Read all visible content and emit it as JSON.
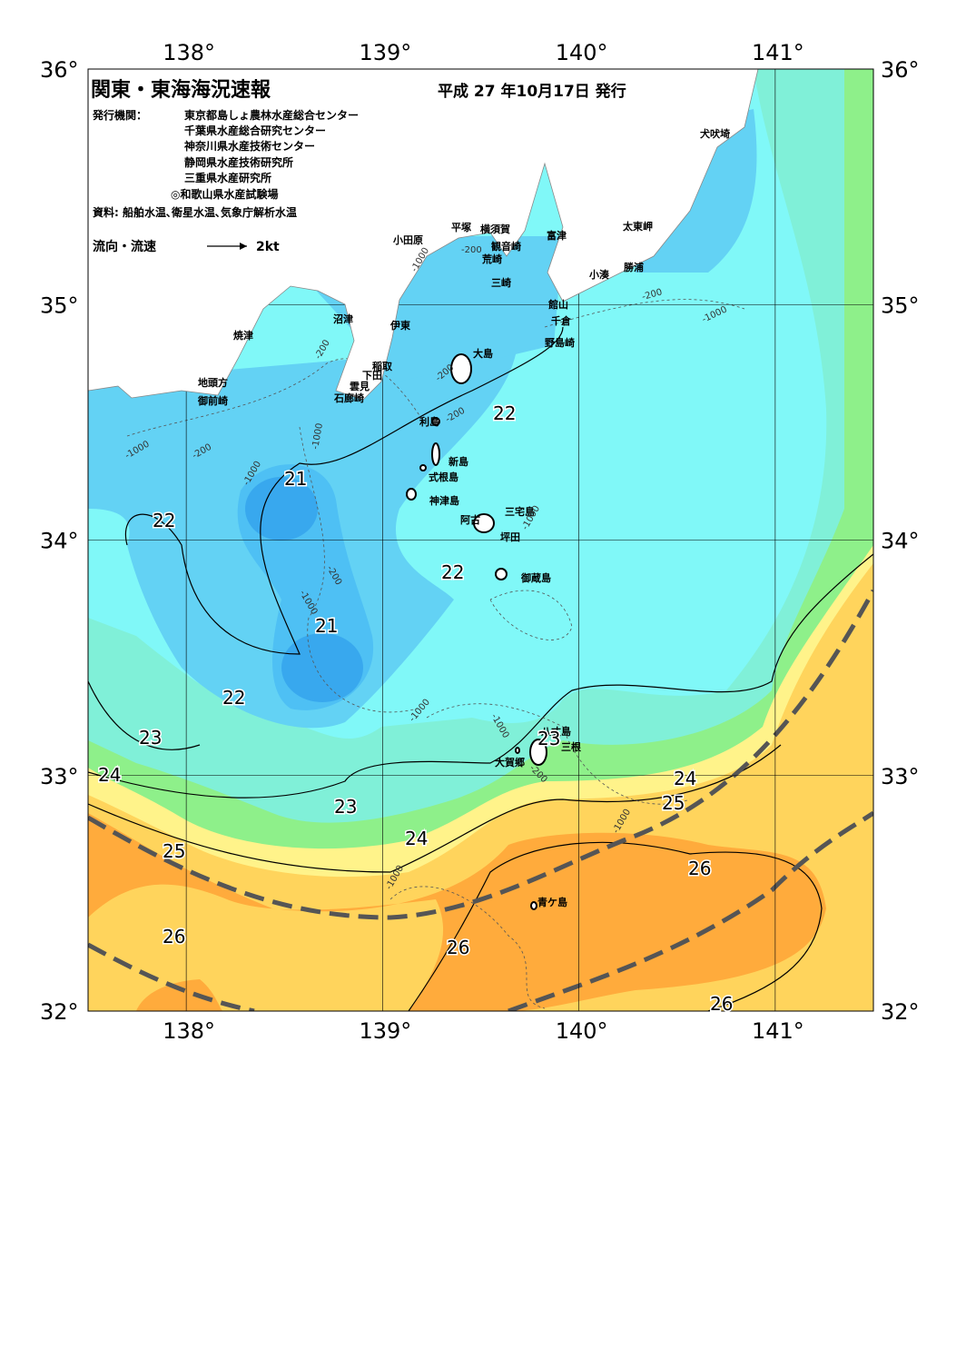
{
  "header": {
    "title": "関東・東海海況速報",
    "date": "平成 27 年10月17日 発行",
    "publisher_label": "発行機関：",
    "publishers": [
      "東京都島しょ農林水産総合センター",
      "千葉県水産総合研究センター",
      "神奈川県水産技術センター",
      "静岡県水産技術研究所",
      "三重県水産研究所",
      "◎和歌山県水産試験場"
    ],
    "sources": "資料: 船舶水温､衛星水温､気象庁解析水温",
    "flow_label": "流向・流速",
    "flow_scale": "2kt"
  },
  "map": {
    "lonlim": [
      137.5,
      141.5
    ],
    "latlim": [
      32,
      36
    ],
    "lon_ticks": [
      {
        "value": 138,
        "label": "138°"
      },
      {
        "value": 139,
        "label": "139°"
      },
      {
        "value": 140,
        "label": "140°"
      },
      {
        "value": 141,
        "label": "141°"
      }
    ],
    "lat_ticks": [
      {
        "value": 36,
        "label": "36°"
      },
      {
        "value": 35,
        "label": "35°"
      },
      {
        "value": 34,
        "label": "34°"
      },
      {
        "value": 33,
        "label": "33°"
      },
      {
        "value": 32,
        "label": "32°"
      }
    ]
  },
  "places": [
    "犬吠埼",
    "太東岬",
    "勝浦",
    "小湊",
    "富津",
    "横須賀",
    "平塚",
    "観音崎",
    "荒崎",
    "小田原",
    "三崎",
    "館山",
    "千倉",
    "野島崎",
    "沼津",
    "伊東",
    "焼津",
    "大島",
    "稲取",
    "下田",
    "雲見",
    "石廊崎",
    "地頭方",
    "御前崎",
    "利島",
    "新島",
    "式根島",
    "神津島",
    "三宅島",
    "阿古",
    "坪田",
    "御蔵島",
    "八丈島",
    "三根",
    "大賀郷",
    "青ケ島"
  ],
  "isotherm_labels": [
    22,
    21,
    22,
    22,
    21,
    22,
    23,
    23,
    24,
    24,
    25,
    23,
    24,
    25,
    26,
    26,
    26,
    26
  ],
  "depth_labels": [
    "-200",
    "-1000",
    "-200",
    "-1000",
    "-200",
    "-200",
    "-1000",
    "-200",
    "-1000",
    "-200",
    "-1000",
    "-1000",
    "-1000",
    "-200",
    "-1000",
    "-1000",
    "-1000",
    "-1000",
    "-200"
  ]
}
